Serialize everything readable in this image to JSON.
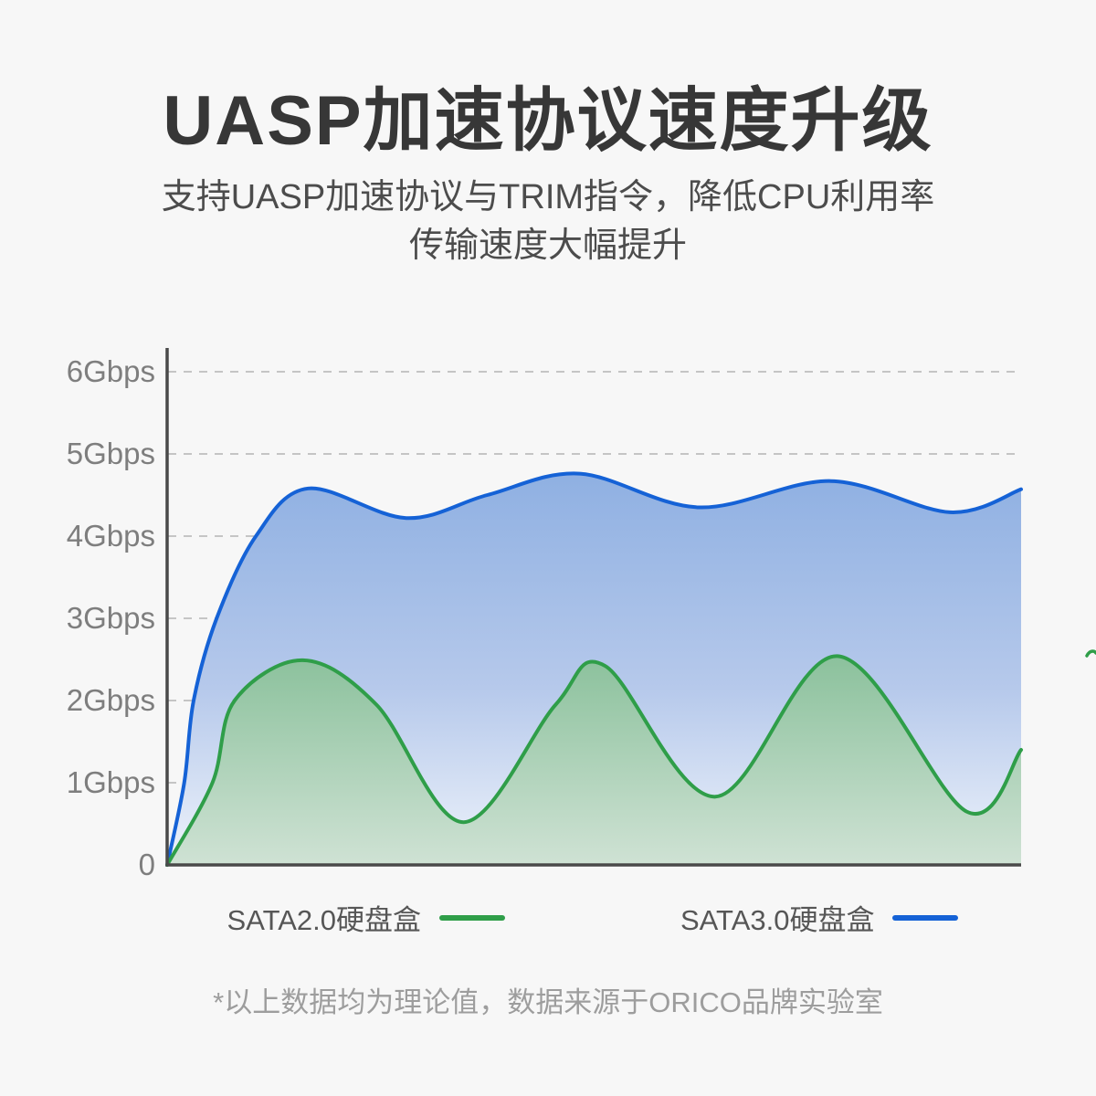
{
  "page": {
    "title": "UASP加速协议速度升级",
    "subtitle_line1": "支持UASP加速协议与TRIM指令，降低CPU利用率",
    "subtitle_line2": "传输速度大幅提升",
    "footnote": "*以上数据均为理论值，数据来源于ORICO品牌实验室"
  },
  "colors": {
    "background": "#f7f7f7",
    "title_text": "#373737",
    "subtitle_text": "#4c4c4c",
    "axis": "#4a4a4a",
    "gridline": "#c5c5c5",
    "tick_label": "#7e7e7e",
    "legend_text": "#565656",
    "footnote_text": "#9d9d9d",
    "sata2_green": "#2f9e49",
    "sata3_blue": "#1562d6"
  },
  "chart_data": {
    "type": "area",
    "unit": "Gbps",
    "ylim": [
      0,
      6
    ],
    "y_ticks": [
      {
        "value": 0,
        "label": "0"
      },
      {
        "value": 1,
        "label": "1Gbps"
      },
      {
        "value": 2,
        "label": "2Gbps"
      },
      {
        "value": 3,
        "label": "3Gbps"
      },
      {
        "value": 4,
        "label": "4Gbps"
      },
      {
        "value": 5,
        "label": "5Gbps"
      },
      {
        "value": 6,
        "label": "6Gbps"
      }
    ],
    "grid": "horizontal-dashed",
    "legend_position": "bottom",
    "x_axis_note": "unlabeled time axis, 0 to 1 as fraction of width",
    "series": [
      {
        "name": "SATA2.0硬盘盒",
        "color": "#2f9e49",
        "fill_stops": [
          [
            0,
            "#8bc19c"
          ],
          [
            1,
            "#cfe2d4"
          ]
        ],
        "points": [
          [
            0,
            0
          ],
          [
            0.053,
            1.0
          ],
          [
            0.079,
            2.0
          ],
          [
            0.159,
            2.49
          ],
          [
            0.245,
            1.95
          ],
          [
            0.347,
            0.52
          ],
          [
            0.455,
            1.95
          ],
          [
            0.513,
            2.42
          ],
          [
            0.642,
            0.83
          ],
          [
            0.785,
            2.54
          ],
          [
            0.936,
            0.65
          ],
          [
            1,
            1.4
          ]
        ]
      },
      {
        "name": "SATA3.0硬盘盒",
        "color": "#1562d6",
        "fill_stops": [
          [
            0,
            "#8fb0e2"
          ],
          [
            0.55,
            "#b6c9eb"
          ],
          [
            1,
            "#eef3fb"
          ]
        ],
        "points": [
          [
            0,
            0
          ],
          [
            0.02,
            1.0
          ],
          [
            0.031,
            2.0
          ],
          [
            0.058,
            3.0
          ],
          [
            0.104,
            4.0
          ],
          [
            0.165,
            4.58
          ],
          [
            0.28,
            4.22
          ],
          [
            0.375,
            4.5
          ],
          [
            0.483,
            4.76
          ],
          [
            0.623,
            4.35
          ],
          [
            0.777,
            4.67
          ],
          [
            0.917,
            4.29
          ],
          [
            1,
            4.57
          ]
        ]
      }
    ]
  }
}
